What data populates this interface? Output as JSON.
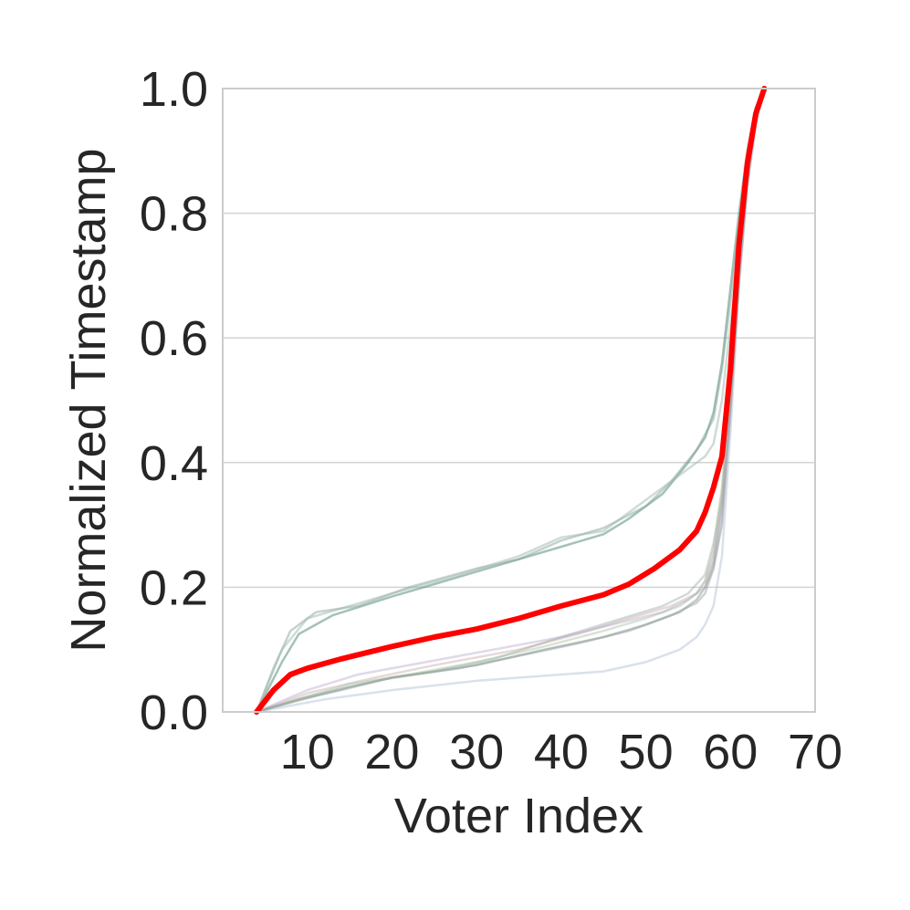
{
  "chart_data": {
    "type": "line",
    "title": "",
    "xlabel": "Voter Index",
    "ylabel": "Normalized Timestamp",
    "xlim": [
      0,
      70
    ],
    "ylim": [
      0,
      1
    ],
    "x_ticks": [
      10,
      20,
      30,
      40,
      50,
      60,
      70
    ],
    "x_tick_labels": [
      "10",
      "20",
      "30",
      "40",
      "50",
      "60",
      "70"
    ],
    "y_ticks": [
      0,
      0.2,
      0.4,
      0.6,
      0.8,
      1.0
    ],
    "y_tick_labels": [
      "0.0",
      "0.2",
      "0.4",
      "0.6",
      "0.8",
      "1.0"
    ],
    "grid": "horizontal",
    "legend": "none",
    "colors": {
      "highlight": "#ff0000",
      "grid": "#d3d3d3",
      "axes_border": "#cccccc",
      "text": "#262626"
    },
    "highlight_series": {
      "color": "#ff0000",
      "points": [
        [
          4,
          0
        ],
        [
          6,
          0.035
        ],
        [
          8,
          0.06
        ],
        [
          10,
          0.07
        ],
        [
          14,
          0.085
        ],
        [
          20,
          0.105
        ],
        [
          25,
          0.12
        ],
        [
          30,
          0.133
        ],
        [
          35,
          0.15
        ],
        [
          40,
          0.17
        ],
        [
          45,
          0.188
        ],
        [
          48,
          0.205
        ],
        [
          51,
          0.23
        ],
        [
          54,
          0.26
        ],
        [
          56,
          0.29
        ],
        [
          57,
          0.32
        ],
        [
          58,
          0.36
        ],
        [
          59,
          0.41
        ],
        [
          60,
          0.55
        ],
        [
          61,
          0.75
        ],
        [
          62,
          0.88
        ],
        [
          63,
          0.96
        ],
        [
          64,
          1.0
        ]
      ]
    },
    "background_series": [
      {
        "color": "#5a8f7b",
        "opacity": 0.55,
        "points": [
          [
            4,
            0
          ],
          [
            7,
            0.08
          ],
          [
            9,
            0.125
          ],
          [
            13,
            0.155
          ],
          [
            20,
            0.185
          ],
          [
            25,
            0.205
          ],
          [
            30,
            0.225
          ],
          [
            35,
            0.245
          ],
          [
            40,
            0.265
          ],
          [
            45,
            0.285
          ],
          [
            48,
            0.31
          ],
          [
            52,
            0.35
          ],
          [
            55,
            0.4
          ],
          [
            57,
            0.44
          ],
          [
            58,
            0.48
          ],
          [
            59,
            0.56
          ],
          [
            60,
            0.68
          ],
          [
            61,
            0.8
          ],
          [
            62,
            0.9
          ],
          [
            63,
            0.97
          ],
          [
            64,
            1.0
          ]
        ]
      },
      {
        "color": "#8aa8a0",
        "opacity": 0.5,
        "points": [
          [
            4,
            0
          ],
          [
            6,
            0.07
          ],
          [
            8,
            0.13
          ],
          [
            11,
            0.16
          ],
          [
            16,
            0.17
          ],
          [
            22,
            0.2
          ],
          [
            30,
            0.23
          ],
          [
            35,
            0.245
          ],
          [
            40,
            0.275
          ],
          [
            45,
            0.295
          ],
          [
            50,
            0.33
          ],
          [
            53,
            0.37
          ],
          [
            56,
            0.42
          ],
          [
            58,
            0.47
          ],
          [
            59,
            0.55
          ],
          [
            60,
            0.66
          ],
          [
            61,
            0.78
          ],
          [
            62,
            0.88
          ],
          [
            63,
            0.96
          ],
          [
            64,
            1.0
          ]
        ]
      },
      {
        "color": "#a0b8b0",
        "opacity": 0.5,
        "points": [
          [
            4,
            0
          ],
          [
            7,
            0.1
          ],
          [
            10,
            0.15
          ],
          [
            15,
            0.17
          ],
          [
            20,
            0.19
          ],
          [
            28,
            0.22
          ],
          [
            35,
            0.25
          ],
          [
            40,
            0.28
          ],
          [
            45,
            0.29
          ],
          [
            50,
            0.34
          ],
          [
            54,
            0.38
          ],
          [
            57,
            0.41
          ],
          [
            58,
            0.43
          ],
          [
            59,
            0.5
          ],
          [
            60,
            0.62
          ],
          [
            61,
            0.74
          ],
          [
            62,
            0.86
          ],
          [
            63,
            0.95
          ],
          [
            64,
            1.0
          ]
        ]
      },
      {
        "color": "#8a9a95",
        "opacity": 0.5,
        "points": [
          [
            4,
            0
          ],
          [
            8,
            0.015
          ],
          [
            15,
            0.04
          ],
          [
            20,
            0.055
          ],
          [
            30,
            0.075
          ],
          [
            38,
            0.1
          ],
          [
            45,
            0.12
          ],
          [
            50,
            0.14
          ],
          [
            54,
            0.16
          ],
          [
            56,
            0.18
          ],
          [
            57,
            0.2
          ],
          [
            58,
            0.24
          ],
          [
            59,
            0.33
          ],
          [
            60,
            0.5
          ],
          [
            61,
            0.7
          ],
          [
            62,
            0.85
          ],
          [
            63,
            0.95
          ],
          [
            64,
            1.0
          ]
        ]
      },
      {
        "color": "#9bb0a8",
        "opacity": 0.45,
        "points": [
          [
            4,
            0
          ],
          [
            10,
            0.025
          ],
          [
            18,
            0.05
          ],
          [
            25,
            0.065
          ],
          [
            32,
            0.085
          ],
          [
            40,
            0.12
          ],
          [
            46,
            0.145
          ],
          [
            52,
            0.17
          ],
          [
            55,
            0.19
          ],
          [
            57,
            0.22
          ],
          [
            58,
            0.27
          ],
          [
            59,
            0.35
          ],
          [
            60,
            0.52
          ],
          [
            61,
            0.72
          ],
          [
            62,
            0.86
          ],
          [
            63,
            0.95
          ],
          [
            64,
            1.0
          ]
        ]
      },
      {
        "color": "#c4a0a0",
        "opacity": 0.4,
        "points": [
          [
            4,
            0
          ],
          [
            10,
            0.03
          ],
          [
            18,
            0.055
          ],
          [
            25,
            0.075
          ],
          [
            35,
            0.1
          ],
          [
            42,
            0.125
          ],
          [
            48,
            0.15
          ],
          [
            53,
            0.17
          ],
          [
            56,
            0.19
          ],
          [
            57,
            0.21
          ],
          [
            58,
            0.25
          ],
          [
            59,
            0.34
          ],
          [
            60,
            0.51
          ],
          [
            61,
            0.71
          ],
          [
            62,
            0.86
          ],
          [
            63,
            0.95
          ],
          [
            64,
            1.0
          ]
        ]
      },
      {
        "color": "#b0a0c8",
        "opacity": 0.4,
        "points": [
          [
            4,
            0
          ],
          [
            10,
            0.035
          ],
          [
            16,
            0.06
          ],
          [
            24,
            0.08
          ],
          [
            32,
            0.1
          ],
          [
            40,
            0.12
          ],
          [
            46,
            0.14
          ],
          [
            52,
            0.16
          ],
          [
            55,
            0.18
          ],
          [
            57,
            0.2
          ],
          [
            58,
            0.23
          ],
          [
            59,
            0.31
          ],
          [
            60,
            0.49
          ],
          [
            61,
            0.7
          ],
          [
            62,
            0.85
          ],
          [
            63,
            0.95
          ],
          [
            64,
            1.0
          ]
        ]
      },
      {
        "color": "#a8c0a0",
        "opacity": 0.45,
        "points": [
          [
            4,
            0
          ],
          [
            9,
            0.02
          ],
          [
            15,
            0.045
          ],
          [
            22,
            0.06
          ],
          [
            30,
            0.08
          ],
          [
            38,
            0.105
          ],
          [
            45,
            0.13
          ],
          [
            50,
            0.15
          ],
          [
            54,
            0.17
          ],
          [
            56,
            0.19
          ],
          [
            57,
            0.21
          ],
          [
            58,
            0.26
          ],
          [
            59,
            0.36
          ],
          [
            60,
            0.53
          ],
          [
            61,
            0.72
          ],
          [
            62,
            0.86
          ],
          [
            63,
            0.95
          ],
          [
            64,
            1.0
          ]
        ]
      },
      {
        "color": "#a0b4cc",
        "opacity": 0.4,
        "points": [
          [
            4,
            0
          ],
          [
            12,
            0.02
          ],
          [
            20,
            0.035
          ],
          [
            30,
            0.05
          ],
          [
            40,
            0.06
          ],
          [
            45,
            0.065
          ],
          [
            50,
            0.08
          ],
          [
            54,
            0.1
          ],
          [
            56,
            0.12
          ],
          [
            57,
            0.14
          ],
          [
            58,
            0.17
          ],
          [
            59,
            0.25
          ],
          [
            60,
            0.45
          ],
          [
            61,
            0.68
          ],
          [
            62,
            0.84
          ],
          [
            63,
            0.94
          ],
          [
            64,
            1.0
          ]
        ]
      },
      {
        "color": "#8e9e98",
        "opacity": 0.45,
        "points": [
          [
            4,
            0
          ],
          [
            9,
            0.02
          ],
          [
            14,
            0.035
          ],
          [
            20,
            0.055
          ],
          [
            28,
            0.07
          ],
          [
            35,
            0.09
          ],
          [
            42,
            0.11
          ],
          [
            48,
            0.13
          ],
          [
            53,
            0.155
          ],
          [
            56,
            0.175
          ],
          [
            57,
            0.19
          ],
          [
            58,
            0.23
          ],
          [
            59,
            0.3
          ],
          [
            60,
            0.48
          ],
          [
            61,
            0.69
          ],
          [
            62,
            0.85
          ],
          [
            63,
            0.95
          ],
          [
            64,
            1.0
          ]
        ]
      }
    ]
  }
}
